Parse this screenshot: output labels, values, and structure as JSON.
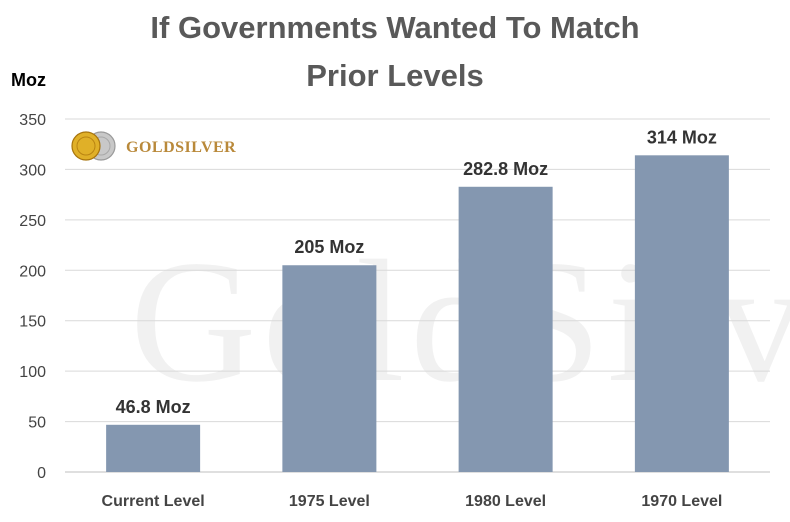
{
  "chart_data": {
    "type": "bar",
    "title": "If Governments Wanted To Match Prior Levels",
    "title_lines": [
      "If Governments Wanted To Match",
      "Prior Levels"
    ],
    "ylabel": "Moz",
    "xlabel": "",
    "categories": [
      "Current Level",
      "1975 Level",
      "1980 Level",
      "1970 Level"
    ],
    "values": [
      46.8,
      205,
      282.8,
      314
    ],
    "data_labels": [
      "46.8 Moz",
      "205 Moz",
      "282.8 Moz",
      "314 Moz"
    ],
    "ylim": [
      0,
      350
    ],
    "yticks": [
      0,
      50,
      100,
      150,
      200,
      250,
      300,
      350
    ],
    "grid": true,
    "bar_color": "#8497b0",
    "gridline_color": "#d9d9d9"
  },
  "logo": {
    "text": "GOLDSILVER",
    "text_display": "GoldSilver",
    "icon": "gold-silver-coins-icon",
    "gold_color": "#d4a017",
    "silver_color": "#c0c0c0"
  },
  "watermark": {
    "text": "GoldSilver"
  }
}
